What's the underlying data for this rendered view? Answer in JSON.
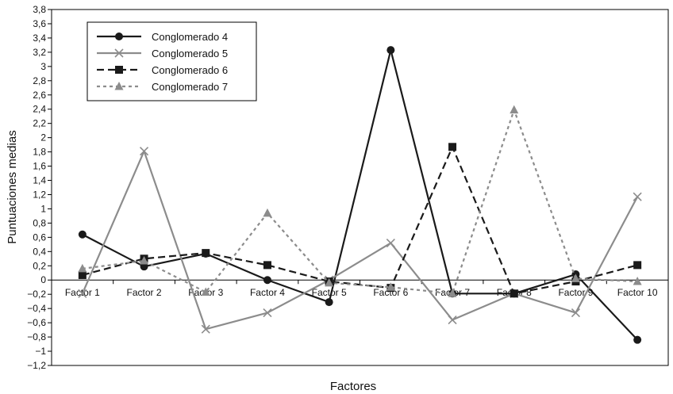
{
  "chart_data": {
    "type": "line",
    "xlabel": "Factores",
    "ylabel": "Puntuaciones medias",
    "categories": [
      "Factor 1",
      "Factor 2",
      "Factor 3",
      "Factor 4",
      "Factor 5",
      "Factor 6",
      "Factor 7",
      "Factor 8",
      "Factor 9",
      "Factor 10"
    ],
    "ylim": [
      -1.2,
      3.8
    ],
    "ytick_step": 0.2,
    "ytick_decimal_separator": ",",
    "grid": false,
    "legend_position": "top-left",
    "series": [
      {
        "name": "Conglomerado 4",
        "values": [
          0.64,
          0.19,
          0.37,
          0.0,
          -0.31,
          3.23,
          -0.19,
          -0.19,
          0.08,
          -0.84
        ],
        "color": "#1a1a1a",
        "dash": "solid",
        "marker": "circle"
      },
      {
        "name": "Conglomerado 5",
        "values": [
          -0.19,
          1.81,
          -0.69,
          -0.46,
          0.0,
          0.52,
          -0.56,
          -0.19,
          -0.46,
          1.17
        ],
        "color": "#8c8c8c",
        "dash": "solid",
        "marker": "cross"
      },
      {
        "name": "Conglomerado 6",
        "values": [
          0.07,
          0.3,
          0.38,
          0.21,
          -0.02,
          -0.11,
          1.87,
          -0.19,
          -0.02,
          0.21
        ],
        "color": "#1a1a1a",
        "dash": "dashed",
        "marker": "square"
      },
      {
        "name": "Conglomerado 7",
        "values": [
          0.16,
          0.27,
          -0.17,
          0.94,
          -0.04,
          -0.1,
          -0.19,
          2.39,
          0.02,
          -0.02
        ],
        "color": "#8c8c8c",
        "dash": "dotted",
        "marker": "triangle"
      }
    ]
  }
}
